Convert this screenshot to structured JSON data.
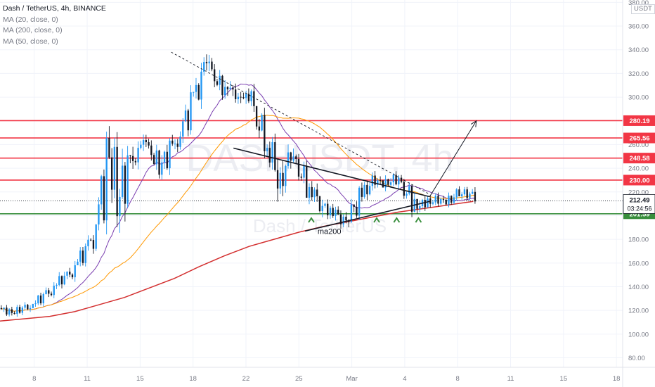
{
  "header": {
    "symbol_line": "Dash / TetherUS, 4h, BINANCE",
    "indicators": [
      "MA (20, close, 0)",
      "MA (200, close, 0)",
      "MA (50, close, 0)"
    ],
    "currency_button": "USDT"
  },
  "watermark": {
    "ticker": "DASHUSDT, 4h",
    "name": "Dash / TetherUS"
  },
  "chart_data": {
    "type": "candlestick",
    "title": "Dash / TetherUS, 4h, BINANCE",
    "x_axis": {
      "tick_labels": [
        "8",
        "11",
        "15",
        "18",
        "22",
        "25",
        "Mar",
        "4",
        "8",
        "11",
        "15",
        "18"
      ]
    },
    "y_axis": {
      "tick_labels": [
        "80.00",
        "100.00",
        "120.00",
        "140.00",
        "160.00",
        "180.00",
        "200.00",
        "220.00",
        "240.00",
        "260.00",
        "280.00",
        "300.00",
        "320.00",
        "340.00",
        "360.00",
        "380.00"
      ],
      "range": [
        72,
        382
      ],
      "position": "right"
    },
    "last_price": 212.49,
    "countdown": "03:24:56",
    "levels": [
      {
        "value": 280.19,
        "color": "#f23645"
      },
      {
        "value": 265.56,
        "color": "#f23645"
      },
      {
        "value": 248.58,
        "color": "#f23645"
      },
      {
        "value": 230.0,
        "color": "#f23645"
      },
      {
        "value": 201.59,
        "color": "#388e3c"
      }
    ],
    "ohlc_sampled": [
      [
        122,
        125,
        117,
        121
      ],
      [
        121,
        124,
        116,
        118
      ],
      [
        118,
        123,
        115,
        122
      ],
      [
        122,
        128,
        119,
        126
      ],
      [
        126,
        135,
        124,
        133
      ],
      [
        133,
        145,
        130,
        142
      ],
      [
        142,
        152,
        138,
        148
      ],
      [
        148,
        165,
        146,
        160
      ],
      [
        160,
        175,
        155,
        172
      ],
      [
        172,
        200,
        168,
        196
      ],
      [
        196,
        262,
        190,
        258
      ],
      [
        258,
        298,
        205,
        210
      ],
      [
        210,
        250,
        205,
        245
      ],
      [
        245,
        270,
        238,
        262
      ],
      [
        262,
        275,
        250,
        255
      ],
      [
        255,
        268,
        235,
        240
      ],
      [
        240,
        262,
        232,
        258
      ],
      [
        258,
        280,
        252,
        272
      ],
      [
        272,
        300,
        268,
        298
      ],
      [
        298,
        338,
        292,
        330
      ],
      [
        330,
        338,
        312,
        318
      ],
      [
        318,
        330,
        300,
        308
      ],
      [
        308,
        325,
        295,
        300
      ],
      [
        300,
        315,
        290,
        305
      ],
      [
        305,
        312,
        278,
        285
      ],
      [
        285,
        290,
        255,
        262
      ],
      [
        262,
        272,
        205,
        225
      ],
      [
        225,
        255,
        218,
        250
      ],
      [
        250,
        262,
        238,
        242
      ],
      [
        242,
        248,
        218,
        222
      ],
      [
        222,
        235,
        208,
        210
      ],
      [
        210,
        218,
        200,
        205
      ],
      [
        205,
        212,
        192,
        196
      ],
      [
        196,
        205,
        182,
        200
      ],
      [
        200,
        222,
        198,
        218
      ],
      [
        218,
        235,
        214,
        230
      ],
      [
        230,
        236,
        222,
        226
      ],
      [
        226,
        238,
        222,
        232
      ],
      [
        232,
        236,
        222,
        225
      ],
      [
        225,
        228,
        205,
        208
      ],
      [
        208,
        214,
        200,
        210
      ],
      [
        210,
        218,
        206,
        214
      ],
      [
        214,
        218,
        208,
        211
      ],
      [
        211,
        222,
        210,
        218
      ],
      [
        218,
        224,
        214,
        220
      ],
      [
        220,
        224,
        210,
        212
      ]
    ],
    "series": [
      {
        "name": "ma200",
        "color": "#d32f2f",
        "x": [
          0,
          0.04,
          0.08,
          0.12,
          0.16,
          0.2,
          0.24,
          0.28,
          0.32,
          0.36,
          0.4,
          0.44,
          0.48,
          0.52,
          0.56,
          0.6,
          0.64,
          0.68,
          0.72,
          0.76
        ],
        "values": [
          111,
          113,
          115,
          119,
          125,
          131,
          139,
          147,
          157,
          166,
          174,
          180,
          186,
          191,
          195,
          199,
          203,
          206,
          209,
          212
        ]
      }
    ],
    "annotations": [
      {
        "type": "text",
        "text": "ma200",
        "x": 0.51,
        "value": 187
      },
      {
        "type": "trendline",
        "style": "solid",
        "from": [
          0.375,
          257
        ],
        "to": [
          0.69,
          216
        ]
      },
      {
        "type": "trendline",
        "style": "solid",
        "from": [
          0.49,
          187
        ],
        "to": [
          0.69,
          212
        ]
      },
      {
        "type": "trendline",
        "style": "dashed",
        "from": [
          0.275,
          338
        ],
        "to": [
          0.69,
          218
        ]
      },
      {
        "type": "arrow",
        "from": [
          0.69,
          216
        ],
        "to": [
          0.765,
          280
        ]
      },
      {
        "type": "markers",
        "symbol": "^",
        "x": [
          0.5,
          0.605,
          0.637,
          0.672
        ]
      }
    ]
  }
}
